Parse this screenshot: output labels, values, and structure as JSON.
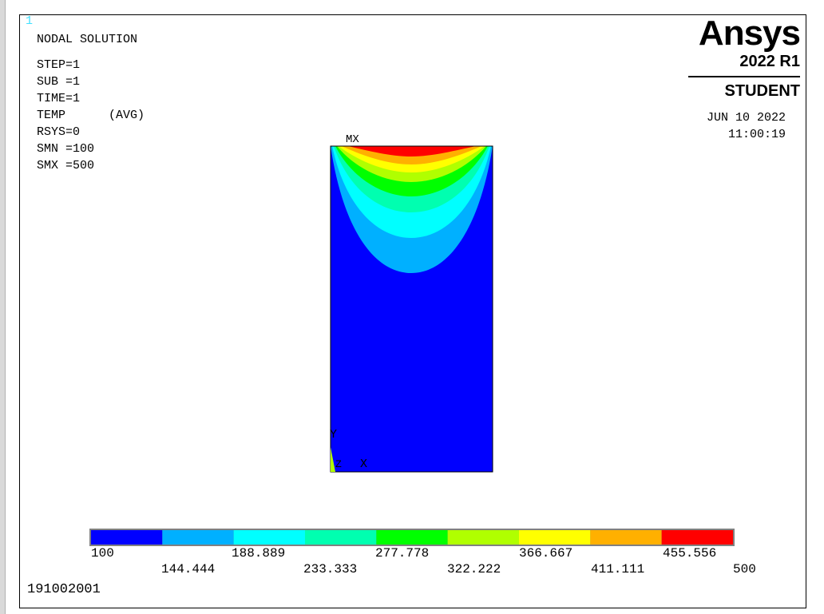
{
  "window_number": "1",
  "info": {
    "title": "NODAL SOLUTION",
    "lines": [
      "STEP=1",
      "SUB =1",
      "TIME=1",
      "TEMP      (AVG)",
      "RSYS=0",
      "SMN =100",
      "SMX =500"
    ]
  },
  "brand": {
    "name": "Ansys",
    "version": "2022 R1",
    "edition": "STUDENT"
  },
  "timestamp": {
    "date": "JUN 10 2022",
    "time": "11:00:19"
  },
  "plot": {
    "max_label": "MX",
    "axis_y": "Y",
    "axis_x": "X",
    "axis_z": "Z"
  },
  "legend": {
    "colors": [
      "#0000ff",
      "#00b0ff",
      "#00ffff",
      "#00ffb0",
      "#00ff00",
      "#b0ff00",
      "#ffff00",
      "#ffb000",
      "#ff0000"
    ],
    "labels_top": [
      "100",
      "188.889",
      "277.778",
      "366.667",
      "455.556"
    ],
    "labels_bottom": [
      "144.444",
      "233.333",
      "322.222",
      "411.111",
      "500"
    ]
  },
  "footer_id": "191002001"
}
